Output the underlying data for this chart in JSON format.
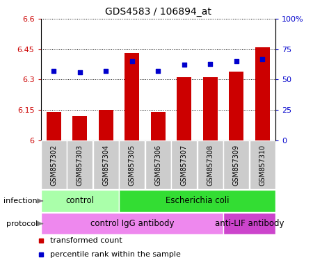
{
  "title": "GDS4583 / 106894_at",
  "samples": [
    "GSM857302",
    "GSM857303",
    "GSM857304",
    "GSM857305",
    "GSM857306",
    "GSM857307",
    "GSM857308",
    "GSM857309",
    "GSM857310"
  ],
  "transformed_count": [
    6.14,
    6.12,
    6.15,
    6.43,
    6.14,
    6.31,
    6.31,
    6.34,
    6.46
  ],
  "percentile_rank": [
    57,
    56,
    57,
    65,
    57,
    62,
    63,
    65,
    67
  ],
  "ylim_left": [
    6.0,
    6.6
  ],
  "ylim_right": [
    0,
    100
  ],
  "yticks_left": [
    6.0,
    6.15,
    6.3,
    6.45,
    6.6
  ],
  "yticks_left_labels": [
    "6",
    "6.15",
    "6.3",
    "6.45",
    "6.6"
  ],
  "yticks_right": [
    0,
    25,
    50,
    75,
    100
  ],
  "yticks_right_labels": [
    "0",
    "25",
    "50",
    "75",
    "100%"
  ],
  "bar_color": "#cc0000",
  "dot_color": "#0000cc",
  "bar_width": 0.55,
  "infection_groups": [
    {
      "label": "control",
      "start": 0,
      "end": 3,
      "color": "#aaffaa"
    },
    {
      "label": "Escherichia coli",
      "start": 3,
      "end": 9,
      "color": "#33dd33"
    }
  ],
  "protocol_groups": [
    {
      "label": "control IgG antibody",
      "start": 0,
      "end": 7,
      "color": "#ee88ee"
    },
    {
      "label": "anti-LIF antibody",
      "start": 7,
      "end": 9,
      "color": "#cc44cc"
    }
  ],
  "legend_items": [
    {
      "label": "transformed count",
      "color": "#cc0000"
    },
    {
      "label": "percentile rank within the sample",
      "color": "#0000cc"
    }
  ],
  "xlabel_infection": "infection",
  "xlabel_protocol": "protocol",
  "sample_bg_color": "#cccccc",
  "chart_bg_color": "#ffffff",
  "title_fontsize": 10,
  "tick_fontsize": 8,
  "label_fontsize": 8,
  "sample_fontsize": 7,
  "legend_fontsize": 8,
  "group_label_fontsize": 8.5
}
